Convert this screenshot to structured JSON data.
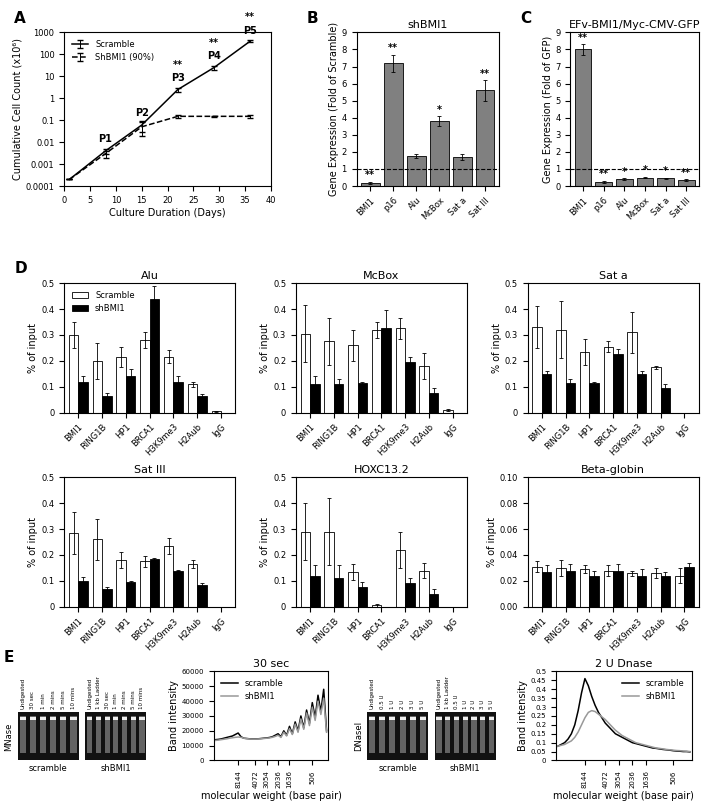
{
  "chart_data": [
    {
      "type": "line",
      "panel_label": "A",
      "x_label": "Culture Duration (Days)",
      "y_label": "Cumulative Cell Count (x10⁶)",
      "log": "y",
      "x": [
        1,
        8,
        15,
        22,
        29,
        36
      ],
      "series": [
        {
          "name": "Scramble",
          "color": "#000000",
          "line_style": "solid",
          "values": [
            0.0002,
            0.004,
            0.06,
            2.5,
            25,
            400
          ],
          "errors": [
            0,
            0.001,
            0.03,
            0.5,
            5,
            50
          ]
        },
        {
          "name": "ShBMI1 (90%)",
          "color": "#000000",
          "line_style": "dashed",
          "values": [
            0.0002,
            0.003,
            0.05,
            0.15,
            0.15,
            0.15
          ],
          "errors": [
            0,
            0.001,
            0.03,
            0.02,
            0.01,
            0.02
          ]
        }
      ],
      "xlim": [
        0,
        40
      ],
      "xticks": [
        0,
        5,
        10,
        15,
        20,
        25,
        30,
        35,
        40
      ],
      "ylim": [
        0.0001,
        1000
      ],
      "yticks": [
        0.0001,
        0.001,
        0.01,
        0.1,
        1,
        10,
        100,
        1000
      ],
      "legend": "upper left",
      "annotations": [
        {
          "text": "P1",
          "x": 8,
          "y": 0.008
        },
        {
          "text": "P2",
          "x": 15,
          "y": 0.12
        },
        {
          "text": "P3",
          "x": 22,
          "y": 5
        },
        {
          "text": "**",
          "x": 22,
          "y": 20
        },
        {
          "text": "P4",
          "x": 29,
          "y": 50
        },
        {
          "text": "**",
          "x": 29,
          "y": 200
        },
        {
          "text": "P5",
          "x": 36,
          "y": 700
        },
        {
          "text": "**",
          "x": 36,
          "y": 3000
        }
      ]
    },
    {
      "type": "bar",
      "panel_label": "B",
      "title": "shBMI1",
      "y_label": "Gene Expression (Fold of Scramble)",
      "categories": [
        "BMI1",
        "p16",
        "Alu",
        "McBox",
        "Sat a",
        "Sat III"
      ],
      "values": [
        0.2,
        7.2,
        1.75,
        3.8,
        1.7,
        5.6
      ],
      "errors": [
        0.05,
        0.5,
        0.1,
        0.3,
        0.2,
        0.6
      ],
      "significance": [
        "**",
        "**",
        null,
        "*",
        null,
        "**"
      ],
      "reference_line": 1,
      "color": "#808080",
      "ylim": [
        0,
        9
      ],
      "yticks": [
        0,
        1,
        2,
        3,
        4,
        5,
        6,
        7,
        8,
        9
      ]
    },
    {
      "type": "bar",
      "panel_label": "C",
      "title": "EFv-BMI1/Myc-CMV-GFP",
      "y_label": "Gene Expression (Fold of GFP)",
      "categories": [
        "BMI1",
        "p16",
        "Alu",
        "McBox",
        "Sat a",
        "Sat III"
      ],
      "values": [
        8.0,
        0.25,
        0.4,
        0.5,
        0.45,
        0.35
      ],
      "errors": [
        0.3,
        0.05,
        0.05,
        0.05,
        0.05,
        0.05
      ],
      "significance": [
        "**",
        "**",
        "*",
        "*",
        "*",
        "**"
      ],
      "reference_line": 1,
      "color": "#808080",
      "ylim": [
        0,
        9
      ],
      "yticks": [
        0,
        1,
        2,
        3,
        4,
        5,
        6,
        7,
        8,
        9
      ]
    },
    {
      "type": "bar",
      "panel_label": "D",
      "title": "Alu",
      "y_label": "% of input",
      "categories": [
        "BMI1",
        "RING1B",
        "HP1",
        "BRCA1",
        "H3K9me3",
        "H2Aub",
        "IgG"
      ],
      "series": [
        {
          "name": "Scramble",
          "color": "#ffffff",
          "values": [
            0.3,
            0.2,
            0.215,
            0.28,
            0.215,
            0.11,
            0.005
          ],
          "errors": [
            0.05,
            0.07,
            0.04,
            0.03,
            0.025,
            0.01,
            0.003
          ]
        },
        {
          "name": "shBMI1",
          "color": "#000000",
          "values": [
            0.12,
            0.065,
            0.14,
            0.44,
            0.12,
            0.065,
            0.0
          ],
          "errors": [
            0.02,
            0.01,
            0.03,
            0.05,
            0.02,
            0.005,
            0
          ]
        }
      ],
      "ylim": [
        0,
        0.5
      ],
      "yticks": [
        0,
        0.1,
        0.2,
        0.3,
        0.4,
        0.5
      ],
      "legend": "upper left"
    },
    {
      "type": "bar",
      "title": "McBox",
      "y_label": "% of input",
      "categories": [
        "BMI1",
        "RING1B",
        "HP1",
        "BRCA1",
        "H3K9me3",
        "H2Aub",
        "IgG"
      ],
      "series": [
        {
          "color": "#ffffff",
          "values": [
            0.305,
            0.275,
            0.26,
            0.32,
            0.325,
            0.18,
            0.01
          ],
          "errors": [
            0.11,
            0.09,
            0.06,
            0.03,
            0.04,
            0.05,
            0.005
          ]
        },
        {
          "color": "#000000",
          "values": [
            0.11,
            0.11,
            0.115,
            0.325,
            0.195,
            0.075,
            0
          ],
          "errors": [
            0.03,
            0.02,
            0.005,
            0.07,
            0.02,
            0.02,
            0
          ]
        }
      ],
      "ylim": [
        0,
        0.5
      ],
      "yticks": [
        0,
        0.1,
        0.2,
        0.3,
        0.4,
        0.5
      ]
    },
    {
      "type": "bar",
      "title": "Sat a",
      "y_label": "% of input",
      "categories": [
        "BMI1",
        "RING1B",
        "HP1",
        "BRCA1",
        "H3K9me3",
        "H2Aub",
        "IgG"
      ],
      "series": [
        {
          "color": "#ffffff",
          "values": [
            0.33,
            0.32,
            0.235,
            0.255,
            0.31,
            0.175,
            0
          ],
          "errors": [
            0.08,
            0.11,
            0.05,
            0.02,
            0.08,
            0.005,
            0
          ]
        },
        {
          "color": "#000000",
          "values": [
            0.15,
            0.115,
            0.115,
            0.225,
            0.15,
            0.095,
            0
          ],
          "errors": [
            0.01,
            0.015,
            0.005,
            0.02,
            0.01,
            0.015,
            0
          ]
        }
      ],
      "ylim": [
        0,
        0.5
      ],
      "yticks": [
        0,
        0.1,
        0.2,
        0.3,
        0.4,
        0.5
      ]
    },
    {
      "type": "bar",
      "title": "Sat III",
      "y_label": "% of input",
      "categories": [
        "BMI1",
        "RING1B",
        "HP1",
        "BRCA1",
        "H3K9me3",
        "H2Aub",
        "IgG"
      ],
      "series": [
        {
          "color": "#ffffff",
          "values": [
            0.285,
            0.26,
            0.18,
            0.175,
            0.235,
            0.165,
            0
          ],
          "errors": [
            0.08,
            0.08,
            0.03,
            0.02,
            0.03,
            0.015,
            0
          ]
        },
        {
          "color": "#000000",
          "values": [
            0.1,
            0.07,
            0.095,
            0.185,
            0.14,
            0.085,
            0
          ],
          "errors": [
            0.015,
            0.005,
            0.005,
            0.005,
            0.002,
            0.005,
            0
          ]
        }
      ],
      "ylim": [
        0,
        0.5
      ],
      "yticks": [
        0,
        0.1,
        0.2,
        0.3,
        0.4,
        0.5
      ]
    },
    {
      "type": "bar",
      "title": "HOXC13.2",
      "y_label": "% of input",
      "categories": [
        "BMI1",
        "RING1B",
        "HP1",
        "BRCA1",
        "H3K9me3",
        "H2Aub",
        "IgG"
      ],
      "series": [
        {
          "color": "#ffffff",
          "values": [
            0.29,
            0.29,
            0.135,
            0.005,
            0.22,
            0.14,
            0
          ],
          "errors": [
            0.11,
            0.13,
            0.03,
            0.005,
            0.07,
            0.03,
            0
          ]
        },
        {
          "color": "#000000",
          "values": [
            0.12,
            0.11,
            0.075,
            0,
            0.09,
            0.05,
            0
          ],
          "errors": [
            0.04,
            0.05,
            0.02,
            0,
            0.02,
            0.02,
            0
          ]
        }
      ],
      "ylim": [
        0,
        0.5
      ],
      "yticks": [
        0,
        0.1,
        0.2,
        0.3,
        0.4,
        0.5
      ]
    },
    {
      "type": "bar",
      "title": "Beta-globin",
      "y_label": "% of input",
      "categories": [
        "BMI1",
        "RING1B",
        "HP1",
        "BRCA1",
        "H3K9me3",
        "H2Aub",
        "IgG"
      ],
      "series": [
        {
          "color": "#ffffff",
          "values": [
            0.031,
            0.03,
            0.029,
            0.028,
            0.026,
            0.026,
            0.024
          ],
          "errors": [
            0.004,
            0.006,
            0.003,
            0.004,
            0.002,
            0.004,
            0.006
          ]
        },
        {
          "color": "#000000",
          "values": [
            0.027,
            0.028,
            0.024,
            0.028,
            0.024,
            0.024,
            0.031
          ],
          "errors": [
            0.005,
            0.005,
            0.004,
            0.005,
            0.005,
            0.003,
            0.003
          ]
        }
      ],
      "ylim": [
        0,
        0.1
      ],
      "yticks": [
        {
          "value": 0,
          "label": "0.00"
        },
        0.02,
        0.04,
        0.06,
        0.08,
        {
          "value": 0.1,
          "label": "0.10"
        }
      ]
    },
    {
      "type": "gel",
      "panel_label": "E",
      "method": "MNase",
      "samples": [
        {
          "name": "scramble",
          "lanes": [
            "Undigested",
            "30 sec",
            "1 min",
            "2 mins",
            "5 mins",
            "10 mins"
          ]
        },
        {
          "name": "shBMI1",
          "lanes": [
            "Undigested",
            "1 kb Ladder",
            "30 sec",
            "1 min",
            "2 mins",
            "5 mins",
            "10 mins"
          ]
        }
      ]
    },
    {
      "type": "line",
      "title": "30 sec",
      "x_label": "molecular weight (base pair)",
      "y_label": "Band intensity",
      "categories": [
        null,
        null,
        null,
        null,
        null,
        null,
        null,
        null,
        "8144",
        null,
        null,
        null,
        null,
        null,
        "4072",
        null,
        null,
        null,
        "3054",
        null,
        null,
        null,
        "2036",
        null,
        null,
        null,
        "1636",
        null,
        null,
        null,
        null,
        null,
        null,
        null,
        "506",
        null,
        null,
        null,
        null,
        null
      ],
      "series": [
        {
          "name": "scramble",
          "color": "#000000",
          "line_style": "solid",
          "values": [
            14000,
            14200,
            14500,
            15000,
            15500,
            16000,
            16500,
            17500,
            18500,
            16000,
            15000,
            14800,
            14600,
            14500,
            14500,
            14600,
            14800,
            15000,
            15200,
            15500,
            16000,
            17000,
            18000,
            16000,
            20000,
            17000,
            23000,
            18000,
            26000,
            20000,
            30000,
            22000,
            34000,
            25000,
            39000,
            29000,
            44000,
            33000,
            48000,
            20000
          ]
        },
        {
          "name": "shBMI1",
          "color": "#999999",
          "line_style": "solid",
          "values": [
            13500,
            13700,
            14000,
            14300,
            14600,
            15000,
            15300,
            15600,
            15800,
            15600,
            15000,
            14700,
            14500,
            14400,
            14400,
            14500,
            14600,
            14800,
            15000,
            15200,
            15600,
            16200,
            17000,
            15500,
            19000,
            16500,
            21500,
            17500,
            24500,
            19000,
            28000,
            21000,
            32000,
            23500,
            36000,
            27000,
            40000,
            31000,
            42000,
            19000
          ]
        }
      ],
      "ylim": [
        0,
        60000
      ],
      "yticks": [
        0,
        10000,
        20000,
        30000,
        40000,
        50000,
        60000
      ],
      "legend": "upper left"
    },
    {
      "type": "gel",
      "method": "DNaseI",
      "samples": [
        {
          "name": "scramble",
          "lanes": [
            "Undigested",
            "0.5 U",
            "1 U",
            "2 U",
            "3 U",
            "5 U"
          ]
        },
        {
          "name": "shBMI1",
          "lanes": [
            "Undigested",
            "1 kb Ladder",
            "0.5 U",
            "1 U",
            "2 U",
            "3 U",
            "5 U"
          ]
        }
      ]
    },
    {
      "type": "line",
      "title": "2 U Dnase",
      "x_label": "molecular weight (base pair)",
      "y_label": "Band intensity",
      "categories": [
        null,
        null,
        null,
        null,
        null,
        null,
        null,
        null,
        "8144",
        null,
        null,
        null,
        null,
        null,
        "4072",
        null,
        null,
        null,
        "3054",
        null,
        null,
        null,
        "2036",
        null,
        null,
        null,
        "1636",
        null,
        null,
        null,
        null,
        null,
        null,
        null,
        "506",
        null,
        null,
        null,
        null,
        null
      ],
      "series": [
        {
          "name": "scramble",
          "color": "#000000",
          "line_style": "solid",
          "values": [
            0.08,
            0.09,
            0.1,
            0.12,
            0.15,
            0.2,
            0.28,
            0.38,
            0.46,
            0.42,
            0.36,
            0.31,
            0.27,
            0.24,
            0.21,
            0.19,
            0.17,
            0.15,
            0.14,
            0.13,
            0.12,
            0.11,
            0.1,
            0.095,
            0.09,
            0.085,
            0.08,
            0.075,
            0.07,
            0.068,
            0.065,
            0.062,
            0.06,
            0.058,
            0.055,
            0.053,
            0.052,
            0.05,
            0.05,
            0.048
          ]
        },
        {
          "name": "shBMI1",
          "color": "#999999",
          "line_style": "solid",
          "values": [
            0.08,
            0.085,
            0.09,
            0.1,
            0.11,
            0.13,
            0.16,
            0.2,
            0.24,
            0.27,
            0.28,
            0.275,
            0.26,
            0.245,
            0.23,
            0.21,
            0.19,
            0.17,
            0.155,
            0.14,
            0.13,
            0.12,
            0.11,
            0.1,
            0.095,
            0.09,
            0.085,
            0.08,
            0.075,
            0.07,
            0.068,
            0.065,
            0.062,
            0.06,
            0.058,
            0.056,
            0.055,
            0.053,
            0.052,
            0.05
          ]
        }
      ],
      "ylim": [
        0,
        0.5
      ],
      "yticks": [
        0,
        0.05,
        0.1,
        0.15,
        0.2,
        0.25,
        0.3,
        0.35,
        0.4,
        0.45,
        0.5
      ],
      "legend": "upper right"
    }
  ]
}
